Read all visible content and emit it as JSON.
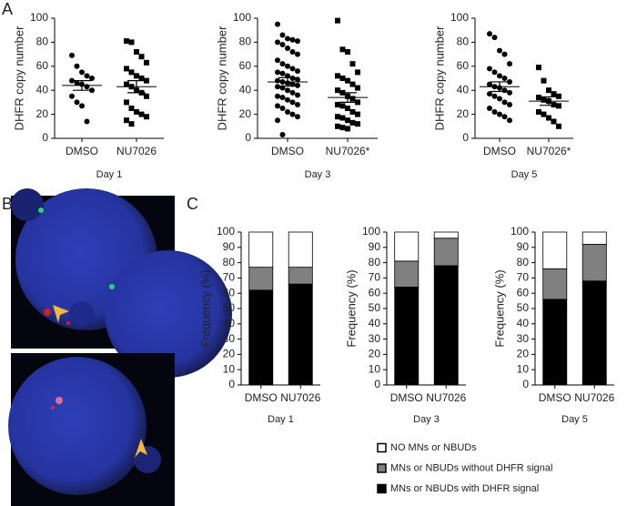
{
  "panels": [
    "A",
    "B",
    "C"
  ],
  "legend": [
    {
      "name": "NO MNs or NBUDs",
      "color": "#ffffff"
    },
    {
      "name": "MNs or NBUDs without DHFR signal",
      "color": "#808080"
    },
    {
      "name": "MNs or NBUDs with DHFR signal",
      "color": "#000000"
    }
  ],
  "chart_data": [
    {
      "type": "dot",
      "ylabel": "DHFR copy number",
      "xlabel": "Day 1",
      "categories": [
        "DMSO",
        "NU7026"
      ],
      "markers": [
        "circle",
        "square"
      ],
      "values": [
        [
          69,
          60,
          55,
          52,
          50,
          48,
          46,
          45,
          43,
          40,
          35,
          30,
          27,
          14
        ],
        [
          81,
          80,
          72,
          68,
          63,
          58,
          55,
          52,
          50,
          48,
          45,
          43,
          40,
          38,
          35,
          30,
          25,
          22,
          20,
          18,
          15,
          12
        ]
      ],
      "means": [
        44,
        43
      ],
      "errors": [
        4,
        5
      ],
      "ylim": [
        0,
        100
      ],
      "yticks": [
        0,
        20,
        40,
        60,
        80,
        100
      ]
    },
    {
      "type": "dot",
      "ylabel": "DHFR copy number",
      "xlabel": "Day 3",
      "categories": [
        "DMSO",
        "NU7026*"
      ],
      "markers": [
        "circle",
        "square"
      ],
      "values": [
        [
          95,
          86,
          83,
          82,
          81,
          80,
          78,
          75,
          72,
          70,
          65,
          62,
          60,
          58,
          56,
          55,
          54,
          52,
          50,
          49,
          48,
          47,
          46,
          45,
          44,
          43,
          42,
          40,
          38,
          36,
          35,
          34,
          32,
          30,
          28,
          27,
          25,
          22,
          20,
          18,
          15,
          3
        ],
        [
          98,
          74,
          72,
          62,
          55,
          52,
          50,
          48,
          45,
          42,
          40,
          38,
          35,
          33,
          30,
          28,
          27,
          25,
          22,
          20,
          18,
          17,
          15,
          13,
          12,
          10,
          9,
          8
        ]
      ],
      "means": [
        47,
        34
      ],
      "errors": [
        3.5,
        4
      ],
      "ylim": [
        0,
        100
      ],
      "yticks": [
        0,
        20,
        40,
        60,
        80,
        100
      ]
    },
    {
      "type": "dot",
      "ylabel": "DHFR copy number",
      "xlabel": "Day 5",
      "categories": [
        "DMSO",
        "NU7026*"
      ],
      "markers": [
        "circle",
        "square"
      ],
      "values": [
        [
          87,
          84,
          73,
          70,
          62,
          58,
          55,
          52,
          50,
          47,
          45,
          43,
          42,
          40,
          38,
          37,
          35,
          33,
          30,
          28,
          25,
          22,
          20,
          18,
          15
        ],
        [
          59,
          48,
          40,
          37,
          35,
          34,
          32,
          31,
          28,
          27,
          22,
          20,
          17,
          14,
          10
        ]
      ],
      "means": [
        43,
        31
      ],
      "errors": [
        4,
        3.5
      ],
      "ylim": [
        0,
        100
      ],
      "yticks": [
        0,
        20,
        40,
        60,
        80,
        100
      ]
    },
    {
      "type": "bar",
      "ylabel": "Frequency (%)",
      "xlabel": "Day 1",
      "categories": [
        "DMSO",
        "NU7026"
      ],
      "series": [
        {
          "values": [
            23,
            23
          ]
        },
        {
          "values": [
            15,
            11
          ]
        },
        {
          "values": [
            62,
            66
          ]
        }
      ],
      "ylim": [
        0,
        100
      ],
      "yticks": [
        0,
        10,
        20,
        30,
        40,
        50,
        60,
        70,
        80,
        90,
        100
      ]
    },
    {
      "type": "bar",
      "ylabel": "Frequency (%)",
      "xlabel": "Day 3",
      "categories": [
        "DMSO",
        "NU7026"
      ],
      "series": [
        {
          "values": [
            19,
            4
          ]
        },
        {
          "values": [
            17,
            18
          ]
        },
        {
          "values": [
            64,
            78
          ]
        }
      ],
      "ylim": [
        0,
        100
      ],
      "yticks": [
        0,
        10,
        20,
        30,
        40,
        50,
        60,
        70,
        80,
        90,
        100
      ]
    },
    {
      "type": "bar",
      "ylabel": "Frequency (%)",
      "xlabel": "Day 5",
      "categories": [
        "DMSO",
        "NU7026"
      ],
      "series": [
        {
          "values": [
            24,
            8
          ]
        },
        {
          "values": [
            20,
            24
          ]
        },
        {
          "values": [
            56,
            68
          ]
        }
      ],
      "ylim": [
        0,
        100
      ],
      "yticks": [
        0,
        10,
        20,
        30,
        40,
        50,
        60,
        70,
        80,
        90,
        100
      ]
    }
  ]
}
